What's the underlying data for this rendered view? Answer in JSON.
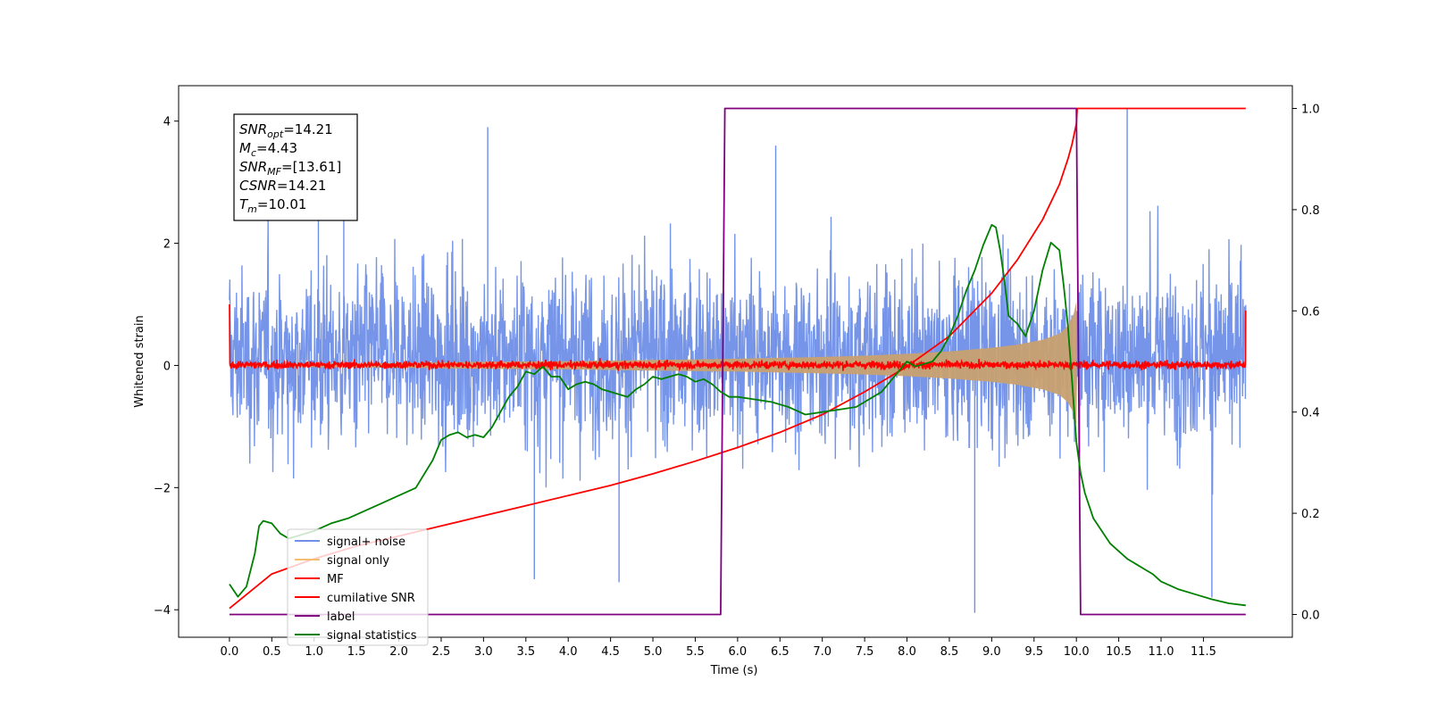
{
  "chart_data": {
    "type": "line",
    "title": "",
    "xlabel": "Time (s)",
    "ylabel": "Whitened strain",
    "y2label": "",
    "xlim": [
      -0.6,
      12.55
    ],
    "ylim": [
      -4.45,
      4.58
    ],
    "y2lim": [
      -0.045,
      1.045
    ],
    "xticks": [
      0.0,
      0.5,
      1.0,
      1.5,
      2.0,
      2.5,
      3.0,
      3.5,
      4.0,
      4.5,
      5.0,
      5.5,
      6.0,
      6.5,
      7.0,
      7.5,
      8.0,
      8.5,
      9.0,
      9.5,
      10.0,
      10.5,
      11.0,
      11.5
    ],
    "xtick_labels": [
      "0.0",
      "0.5",
      "1.0",
      "1.5",
      "2.0",
      "2.5",
      "3.0",
      "3.5",
      "4.0",
      "4.5",
      "5.0",
      "5.5",
      "6.0",
      "6.5",
      "7.0",
      "7.5",
      "8.0",
      "8.5",
      "9.0",
      "9.5",
      "10.0",
      "10.5",
      "11.0",
      "11.5"
    ],
    "yticks": [
      -4,
      -2,
      0,
      2,
      4
    ],
    "ytick_labels": [
      "−4",
      "−2",
      "0",
      "2",
      "4"
    ],
    "y2ticks": [
      0.0,
      0.2,
      0.4,
      0.6,
      0.8,
      1.0
    ],
    "y2tick_labels": [
      "0.0",
      "0.2",
      "0.4",
      "0.6",
      "0.8",
      "1.0"
    ],
    "grid": false,
    "legend_position": "lower-left",
    "annotation": {
      "lines": [
        {
          "main": "SNR",
          "sub": "opt",
          "value": "=14.21"
        },
        {
          "main": "M",
          "sub": "c",
          "value": "=4.43"
        },
        {
          "main": "SNR",
          "sub": "MF",
          "value": "=[13.61]"
        },
        {
          "main": "CSNR",
          "sub": "",
          "value": "=14.21"
        },
        {
          "main": "T",
          "sub": "m",
          "value": "=10.01"
        }
      ]
    },
    "series": [
      {
        "name": "signal+ noise",
        "axis": "left",
        "color": "#6f8fe8",
        "x_range": [
          0.0,
          12.0
        ],
        "typical_band": [
          -1.9,
          2.2
        ],
        "extremes_x": [
          1.05,
          1.35,
          3.05,
          3.6,
          4.6,
          6.45,
          8.8,
          10.6,
          11.6
        ],
        "extremes_y": [
          2.7,
          3.9,
          3.9,
          -3.5,
          -3.55,
          3.6,
          -4.05,
          4.2,
          -3.8
        ]
      },
      {
        "name": "signal only",
        "axis": "left",
        "color": "#f5bd70",
        "x": [
          0.0,
          1.0,
          2.0,
          3.0,
          4.0,
          5.0,
          6.0,
          7.0,
          7.5,
          8.0,
          8.5,
          9.0,
          9.3,
          9.6,
          9.8,
          9.9,
          9.97,
          10.0,
          10.01
        ],
        "y_amplitude": [
          0.02,
          0.03,
          0.04,
          0.06,
          0.07,
          0.09,
          0.11,
          0.14,
          0.16,
          0.19,
          0.23,
          0.29,
          0.34,
          0.42,
          0.52,
          0.65,
          0.85,
          1.05,
          0.0
        ]
      },
      {
        "name": "MF",
        "axis": "left",
        "color": "#ff0000",
        "x_range": [
          0.0,
          12.0
        ],
        "typical_band": [
          -0.1,
          0.12
        ],
        "x": [
          0.0,
          0.02,
          11.97,
          12.0
        ],
        "y": [
          1.0,
          0.0,
          0.0,
          0.9
        ]
      },
      {
        "name": "cumilative SNR",
        "axis": "right",
        "color": "#ff0000",
        "x": [
          0.0,
          0.5,
          1.0,
          1.5,
          2.0,
          2.5,
          3.0,
          3.5,
          4.0,
          4.5,
          5.0,
          5.5,
          6.0,
          6.5,
          7.0,
          7.5,
          8.0,
          8.5,
          9.0,
          9.3,
          9.6,
          9.8,
          9.9,
          9.95,
          10.0,
          10.01,
          12.0
        ],
        "y": [
          0.012,
          0.08,
          0.11,
          0.135,
          0.155,
          0.175,
          0.195,
          0.215,
          0.235,
          0.255,
          0.278,
          0.303,
          0.33,
          0.36,
          0.395,
          0.44,
          0.49,
          0.55,
          0.635,
          0.7,
          0.78,
          0.85,
          0.9,
          0.93,
          0.97,
          1.0,
          1.0
        ]
      },
      {
        "name": "label",
        "axis": "right",
        "color": "#800080",
        "x": [
          0.0,
          5.8,
          5.85,
          10.0,
          10.05,
          12.0
        ],
        "y": [
          0.0,
          0.0,
          1.0,
          1.0,
          0.0,
          0.0
        ]
      },
      {
        "name": "signal statistics",
        "axis": "right",
        "color": "#008000",
        "x": [
          0.0,
          0.1,
          0.2,
          0.3,
          0.35,
          0.4,
          0.5,
          0.6,
          0.7,
          0.8,
          0.9,
          1.0,
          1.2,
          1.4,
          1.6,
          1.8,
          2.0,
          2.2,
          2.4,
          2.5,
          2.6,
          2.7,
          2.8,
          2.9,
          3.0,
          3.1,
          3.2,
          3.3,
          3.4,
          3.5,
          3.6,
          3.7,
          3.8,
          3.9,
          4.0,
          4.1,
          4.2,
          4.3,
          4.4,
          4.5,
          4.6,
          4.7,
          4.8,
          4.9,
          5.0,
          5.1,
          5.2,
          5.3,
          5.4,
          5.5,
          5.6,
          5.7,
          5.8,
          5.9,
          6.0,
          6.2,
          6.4,
          6.6,
          6.8,
          7.0,
          7.2,
          7.4,
          7.5,
          7.6,
          7.7,
          7.8,
          7.9,
          8.0,
          8.1,
          8.2,
          8.3,
          8.4,
          8.5,
          8.6,
          8.7,
          8.8,
          8.9,
          9.0,
          9.05,
          9.1,
          9.15,
          9.2,
          9.3,
          9.4,
          9.5,
          9.6,
          9.7,
          9.8,
          9.85,
          9.9,
          9.95,
          10.0,
          10.05,
          10.1,
          10.2,
          10.3,
          10.4,
          10.5,
          10.6,
          10.7,
          10.8,
          10.9,
          11.0,
          11.2,
          11.4,
          11.6,
          11.8,
          12.0
        ],
        "y": [
          0.06,
          0.035,
          0.055,
          0.12,
          0.175,
          0.185,
          0.18,
          0.16,
          0.15,
          0.155,
          0.16,
          0.165,
          0.18,
          0.19,
          0.205,
          0.22,
          0.235,
          0.25,
          0.305,
          0.345,
          0.355,
          0.36,
          0.35,
          0.355,
          0.35,
          0.37,
          0.4,
          0.43,
          0.45,
          0.48,
          0.475,
          0.49,
          0.47,
          0.47,
          0.445,
          0.455,
          0.46,
          0.455,
          0.445,
          0.44,
          0.435,
          0.43,
          0.445,
          0.455,
          0.47,
          0.465,
          0.47,
          0.475,
          0.47,
          0.46,
          0.465,
          0.455,
          0.44,
          0.43,
          0.43,
          0.425,
          0.42,
          0.41,
          0.395,
          0.4,
          0.405,
          0.41,
          0.42,
          0.43,
          0.44,
          0.46,
          0.48,
          0.5,
          0.49,
          0.495,
          0.5,
          0.52,
          0.55,
          0.59,
          0.64,
          0.68,
          0.73,
          0.77,
          0.765,
          0.72,
          0.66,
          0.59,
          0.575,
          0.55,
          0.6,
          0.68,
          0.735,
          0.72,
          0.65,
          0.57,
          0.46,
          0.34,
          0.28,
          0.24,
          0.19,
          0.165,
          0.14,
          0.125,
          0.11,
          0.1,
          0.09,
          0.08,
          0.065,
          0.05,
          0.04,
          0.03,
          0.022,
          0.018
        ]
      }
    ]
  }
}
